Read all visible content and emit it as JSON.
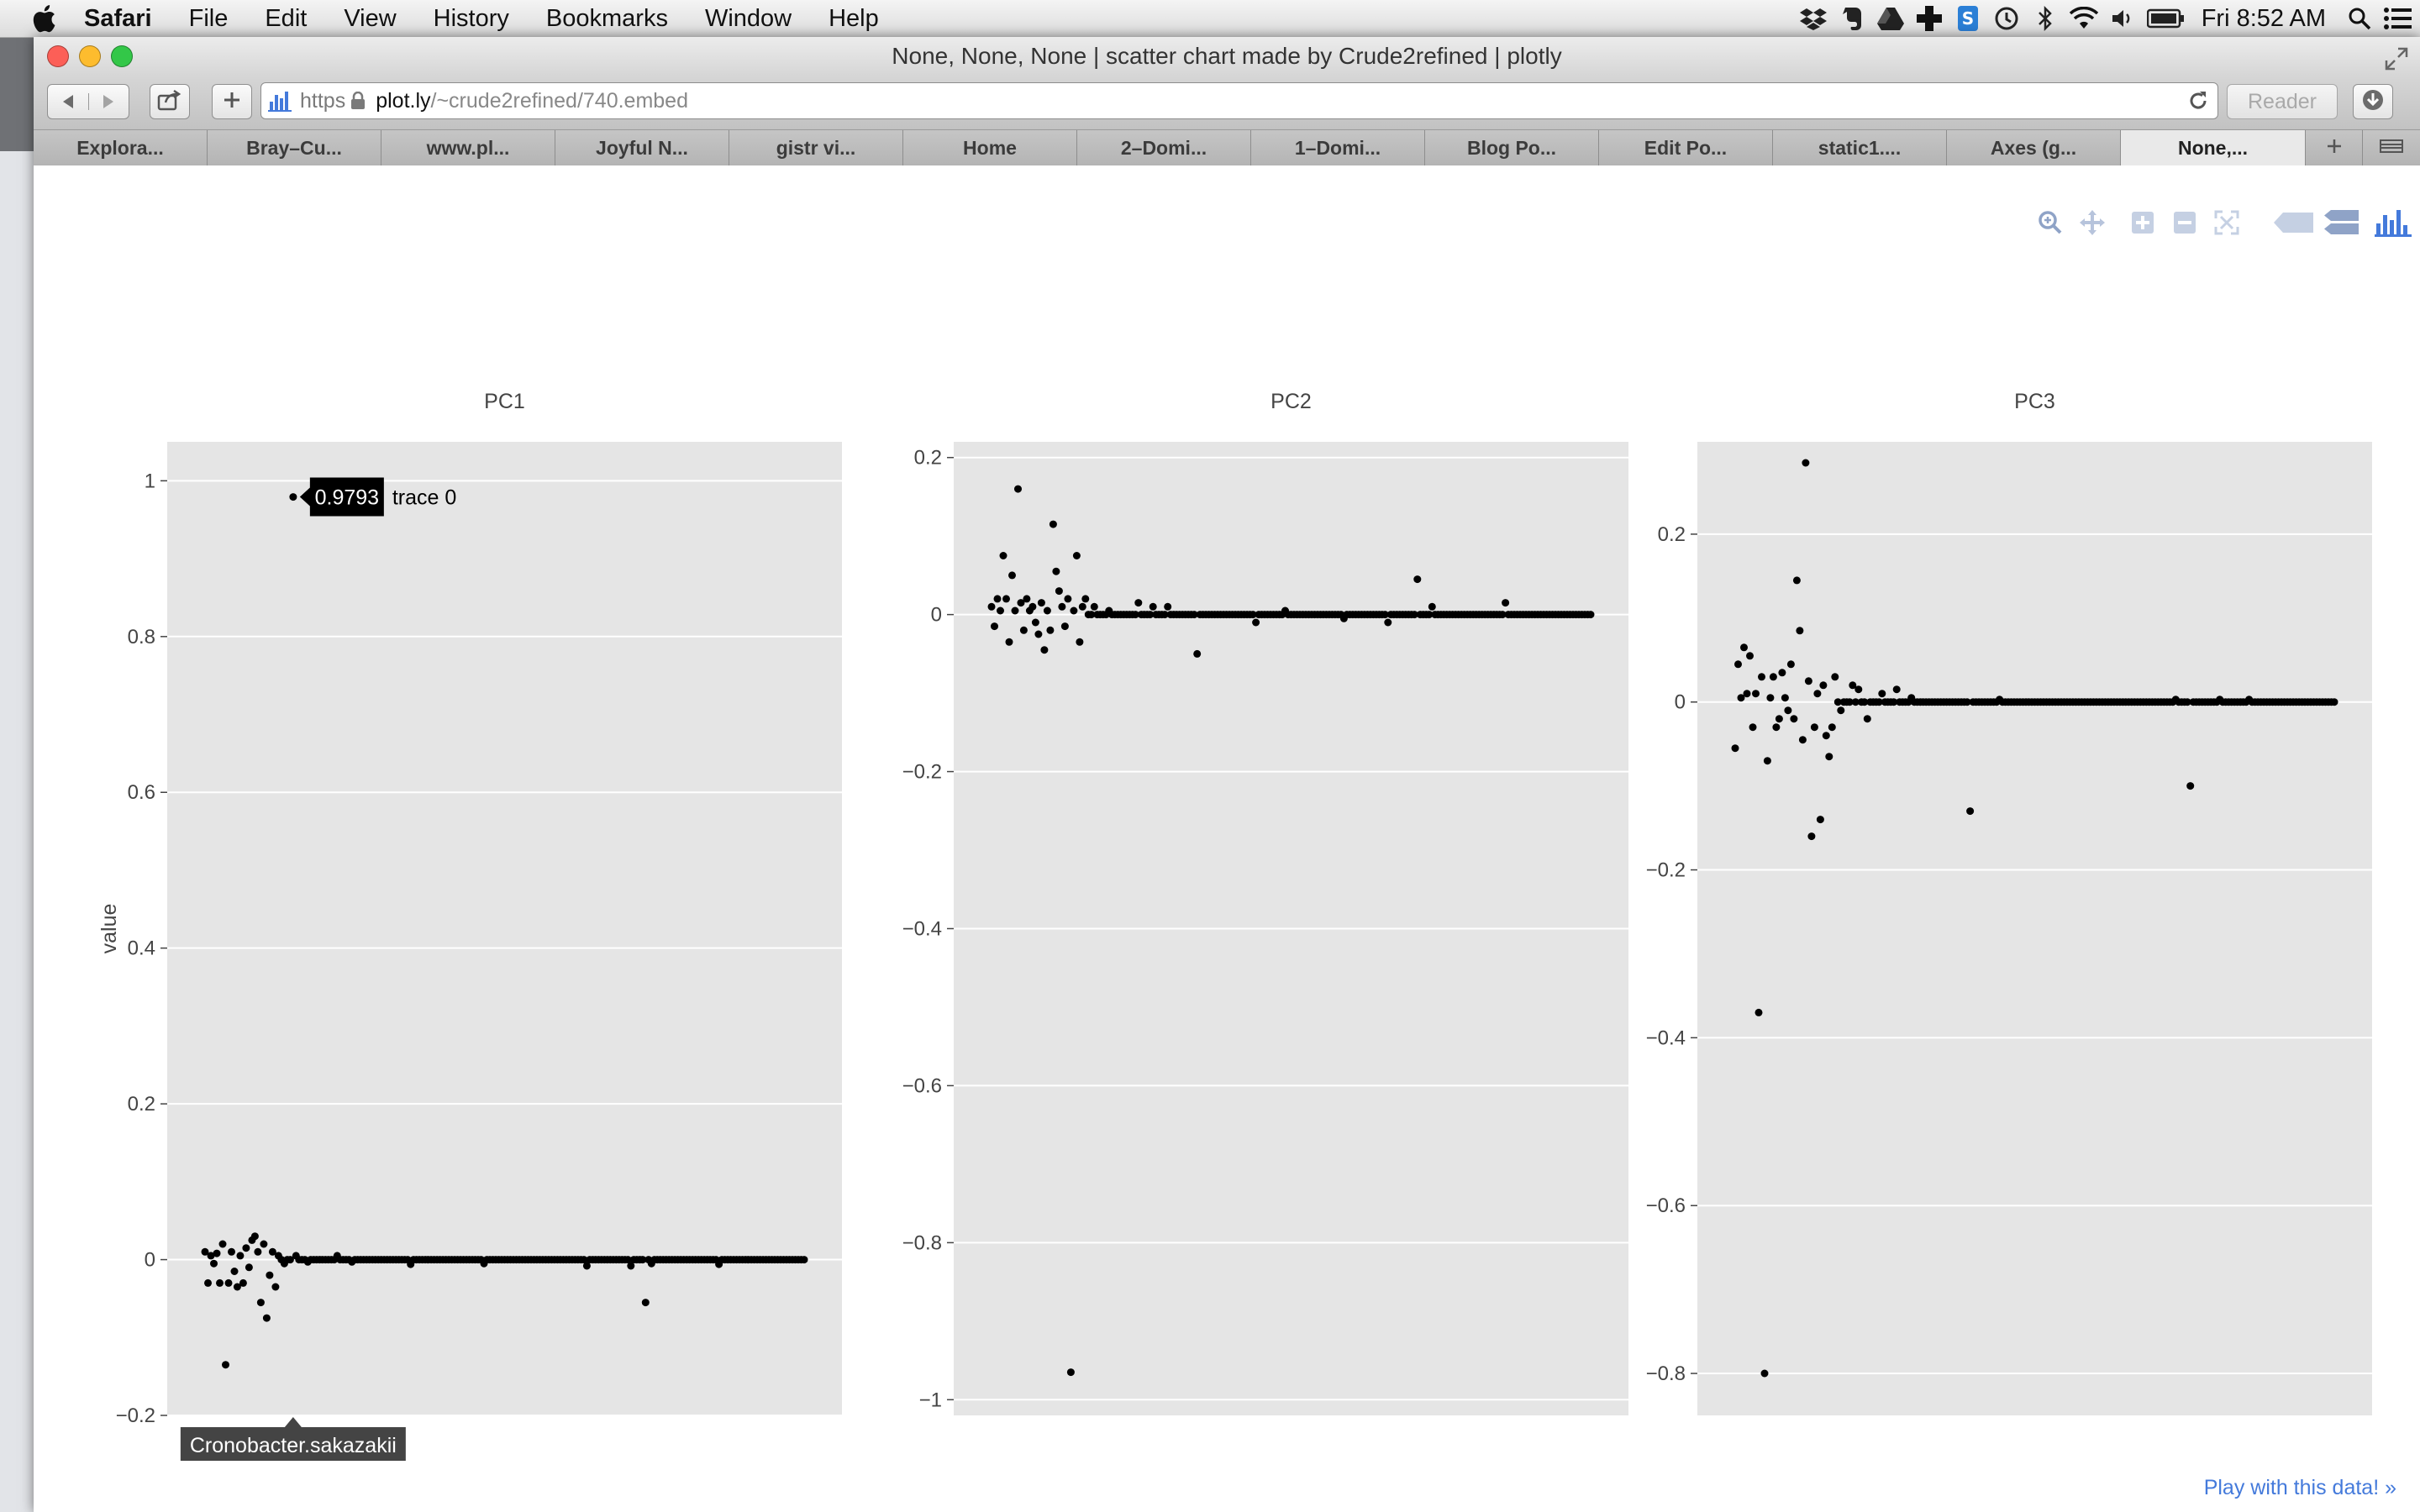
{
  "menubar": {
    "app_name": "Safari",
    "items": [
      "File",
      "Edit",
      "View",
      "History",
      "Bookmarks",
      "Window",
      "Help"
    ],
    "clock": "Fri 8:52 AM",
    "status_icons": [
      "dropbox-icon",
      "evernote-icon",
      "google-drive-icon",
      "crashplan-icon",
      "skype-icon",
      "time-machine-icon",
      "bluetooth-icon",
      "wifi-icon",
      "volume-icon",
      "battery-icon",
      "spotlight-icon",
      "notification-center-icon"
    ]
  },
  "window": {
    "title": "None, None, None | scatter chart made by Crude2refined | plotly"
  },
  "address_bar": {
    "scheme": "https",
    "host": "plot.ly",
    "path": "/~crude2refined/740.embed",
    "reader_label": "Reader"
  },
  "tabs": [
    {
      "label": "Explora..."
    },
    {
      "label": "Bray–Cu..."
    },
    {
      "label": "www.pl..."
    },
    {
      "label": "Joyful N..."
    },
    {
      "label": "gistr vi..."
    },
    {
      "label": "Home"
    },
    {
      "label": "2–Domi..."
    },
    {
      "label": "1–Domi..."
    },
    {
      "label": "Blog Po..."
    },
    {
      "label": "Edit Po..."
    },
    {
      "label": "static1...."
    },
    {
      "label": "Axes (g..."
    },
    {
      "label": "None,...",
      "active": true
    }
  ],
  "modebar": [
    "zoom-icon",
    "pan-icon",
    "zoom-in-icon",
    "zoom-out-icon",
    "autoscale-icon",
    "hover-closest-icon",
    "hover-compare-icon",
    "plotly-logo-icon"
  ],
  "play_link": "Play with this data! »",
  "chart_data": {
    "type": "scatter",
    "ylabel": "value",
    "hover": {
      "panel": 0,
      "value_label": "0.9793",
      "trace_label": "trace 0",
      "x_label": "Cronobacter.sakazakii",
      "x_index": 30,
      "y": 0.9793
    },
    "marker_color": "#000000",
    "background_color": "#e5e5e5",
    "panels": [
      {
        "title": "PC1",
        "ylim": [
          -0.2,
          1.05
        ],
        "yticks": [
          -0.2,
          0,
          0.2,
          0.4,
          0.6,
          0.8,
          1
        ],
        "ytick_labels": [
          "−0.2",
          "0",
          "0.2",
          "0.4",
          "0.6",
          "0.8",
          "1"
        ],
        "n_points": 205,
        "baseline": 0,
        "outliers": [
          [
            0,
            0.01
          ],
          [
            1,
            -0.03
          ],
          [
            2,
            0.005
          ],
          [
            3,
            -0.005
          ],
          [
            4,
            0.008
          ],
          [
            5,
            -0.03
          ],
          [
            6,
            0.02
          ],
          [
            7,
            -0.135
          ],
          [
            8,
            -0.03
          ],
          [
            9,
            0.01
          ],
          [
            10,
            -0.015
          ],
          [
            11,
            -0.035
          ],
          [
            12,
            0.005
          ],
          [
            13,
            -0.03
          ],
          [
            14,
            0.015
          ],
          [
            15,
            -0.01
          ],
          [
            16,
            0.025
          ],
          [
            17,
            0.03
          ],
          [
            18,
            0.01
          ],
          [
            19,
            -0.055
          ],
          [
            20,
            0.02
          ],
          [
            21,
            -0.075
          ],
          [
            22,
            -0.02
          ],
          [
            23,
            0.01
          ],
          [
            24,
            -0.035
          ],
          [
            25,
            0.005
          ],
          [
            27,
            -0.005
          ],
          [
            30,
            0.9793
          ],
          [
            31,
            0.005
          ],
          [
            35,
            -0.003
          ],
          [
            45,
            0.005
          ],
          [
            50,
            -0.003
          ],
          [
            70,
            -0.006
          ],
          [
            95,
            -0.005
          ],
          [
            130,
            -0.008
          ],
          [
            145,
            -0.008
          ],
          [
            150,
            -0.055
          ],
          [
            152,
            -0.005
          ],
          [
            175,
            -0.006
          ]
        ]
      },
      {
        "title": "PC2",
        "ylim": [
          -1.02,
          0.22
        ],
        "yticks": [
          -1,
          -0.8,
          -0.6,
          -0.4,
          -0.2,
          0,
          0.2
        ],
        "ytick_labels": [
          "−1",
          "−0.8",
          "−0.6",
          "−0.4",
          "−0.2",
          "0",
          "0.2"
        ],
        "n_points": 205,
        "baseline": 0,
        "outliers": [
          [
            0,
            0.01
          ],
          [
            1,
            -0.015
          ],
          [
            2,
            0.02
          ],
          [
            3,
            0.005
          ],
          [
            4,
            0.075
          ],
          [
            5,
            0.02
          ],
          [
            6,
            -0.035
          ],
          [
            7,
            0.05
          ],
          [
            8,
            0.005
          ],
          [
            9,
            0.16
          ],
          [
            10,
            0.015
          ],
          [
            11,
            -0.02
          ],
          [
            12,
            0.02
          ],
          [
            13,
            0.005
          ],
          [
            14,
            0.01
          ],
          [
            15,
            -0.01
          ],
          [
            16,
            -0.025
          ],
          [
            17,
            0.015
          ],
          [
            18,
            -0.045
          ],
          [
            19,
            0.005
          ],
          [
            20,
            -0.02
          ],
          [
            21,
            0.115
          ],
          [
            22,
            0.055
          ],
          [
            23,
            0.03
          ],
          [
            24,
            0.01
          ],
          [
            25,
            -0.015
          ],
          [
            26,
            0.02
          ],
          [
            27,
            -0.965
          ],
          [
            28,
            0.005
          ],
          [
            29,
            0.075
          ],
          [
            30,
            -0.035
          ],
          [
            31,
            0.01
          ],
          [
            32,
            0.02
          ],
          [
            35,
            0.01
          ],
          [
            40,
            0.005
          ],
          [
            50,
            0.015
          ],
          [
            55,
            0.01
          ],
          [
            60,
            0.01
          ],
          [
            70,
            -0.05
          ],
          [
            90,
            -0.01
          ],
          [
            100,
            0.005
          ],
          [
            120,
            -0.005
          ],
          [
            135,
            -0.01
          ],
          [
            145,
            0.045
          ],
          [
            150,
            0.01
          ],
          [
            175,
            0.015
          ]
        ]
      },
      {
        "title": "PC3",
        "ylim": [
          -0.85,
          0.31
        ],
        "yticks": [
          -0.8,
          -0.6,
          -0.4,
          -0.2,
          0,
          0.2
        ],
        "ytick_labels": [
          "−0.8",
          "−0.6",
          "−0.4",
          "−0.2",
          "0",
          "0.2"
        ],
        "n_points": 205,
        "baseline": 0,
        "outliers": [
          [
            0,
            -0.055
          ],
          [
            1,
            0.045
          ],
          [
            2,
            0.005
          ],
          [
            3,
            0.065
          ],
          [
            4,
            0.01
          ],
          [
            5,
            0.055
          ],
          [
            6,
            -0.03
          ],
          [
            7,
            0.01
          ],
          [
            8,
            -0.37
          ],
          [
            9,
            0.03
          ],
          [
            10,
            -0.8
          ],
          [
            11,
            -0.07
          ],
          [
            12,
            0.005
          ],
          [
            13,
            0.03
          ],
          [
            14,
            -0.03
          ],
          [
            15,
            -0.02
          ],
          [
            16,
            0.035
          ],
          [
            17,
            0.005
          ],
          [
            18,
            -0.01
          ],
          [
            19,
            0.045
          ],
          [
            20,
            -0.02
          ],
          [
            21,
            0.145
          ],
          [
            22,
            0.085
          ],
          [
            23,
            -0.045
          ],
          [
            24,
            0.285
          ],
          [
            25,
            0.025
          ],
          [
            26,
            -0.16
          ],
          [
            27,
            -0.03
          ],
          [
            28,
            0.01
          ],
          [
            29,
            -0.14
          ],
          [
            30,
            0.02
          ],
          [
            31,
            -0.04
          ],
          [
            32,
            -0.065
          ],
          [
            33,
            -0.03
          ],
          [
            34,
            0.03
          ],
          [
            36,
            -0.01
          ],
          [
            40,
            0.02
          ],
          [
            42,
            0.015
          ],
          [
            45,
            -0.02
          ],
          [
            50,
            0.01
          ],
          [
            55,
            0.015
          ],
          [
            60,
            0.005
          ],
          [
            80,
            -0.13
          ],
          [
            90,
            0.003
          ],
          [
            150,
            0.003
          ],
          [
            155,
            -0.1
          ],
          [
            165,
            0.003
          ],
          [
            175,
            0.003
          ]
        ]
      }
    ]
  }
}
